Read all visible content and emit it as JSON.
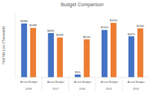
{
  "chart_data": {
    "type": "bar",
    "title": "Budget Comparison",
    "y_label": "Total Net Loss (Thousands)",
    "categories": [
      "2018",
      "2017",
      "2016",
      "2015",
      "2014"
    ],
    "series": [
      {
        "name": "Actual",
        "color": "#4472c4",
        "values": [
          5866,
          4831,
          311,
          5163,
          4475
        ],
        "value_labels": [
          "$5866",
          "$4831",
          "$311",
          "$5163",
          "$4475"
        ]
      },
      {
        "name": "Budget",
        "color": "#ed7d31",
        "values": [
          5388,
          4339,
          4140,
          5934,
          5330
        ],
        "value_labels": [
          "$5388",
          "$4339",
          "$4140",
          "$5934",
          "$5330"
        ]
      }
    ],
    "ylim": [
      0,
      7000
    ],
    "grid": false,
    "data_labels": true,
    "tick_labels": "x"
  }
}
